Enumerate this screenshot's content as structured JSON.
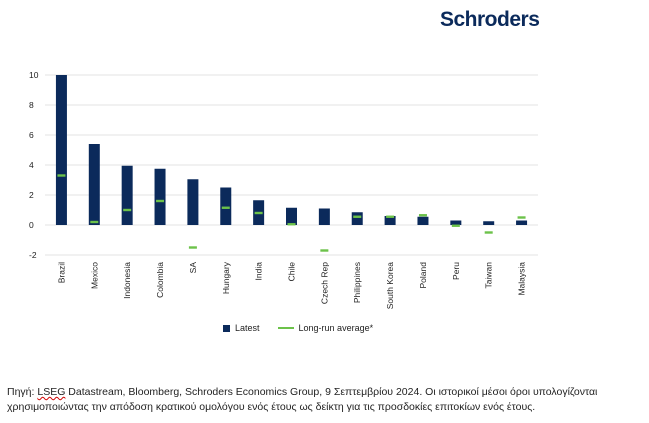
{
  "brand": {
    "logo_text": "Schroders"
  },
  "colors": {
    "latest": "#0b2a5b",
    "average": "#6cc24a",
    "grid": "#e3e3e3"
  },
  "chart_data": {
    "type": "bar",
    "categories": [
      "Brazil",
      "Mexico",
      "Indonesia",
      "Colombia",
      "SA",
      "Hungary",
      "India",
      "Chile",
      "Czech Rep",
      "Philippines",
      "South Korea",
      "Poland",
      "Peru",
      "Taiwan",
      "Malaysia"
    ],
    "series": [
      {
        "name": "Latest",
        "type": "bar",
        "values": [
          10.0,
          5.4,
          3.95,
          3.75,
          3.05,
          2.5,
          1.65,
          1.15,
          1.1,
          0.85,
          0.6,
          0.55,
          0.3,
          0.25,
          0.3
        ]
      },
      {
        "name": "Long-run average*",
        "type": "marker",
        "values": [
          3.3,
          0.2,
          1.0,
          1.6,
          -1.5,
          1.15,
          0.8,
          0.05,
          -1.7,
          0.55,
          0.55,
          0.65,
          -0.05,
          -0.5,
          0.5
        ]
      }
    ],
    "yticks": [
      10,
      8,
      6,
      4,
      2,
      0,
      -2
    ],
    "ylim": [
      -2,
      10
    ],
    "grid": true,
    "legend_position": "bottom"
  },
  "legend": {
    "latest_label": "Latest",
    "average_label": "Long-run average*"
  },
  "source": {
    "prefix": "Πηγή: ",
    "underlined": "LSEG",
    "text": " Datastream, Bloomberg, Schroders Economics Group, 9 Σεπτεμβρίου 2024. Οι ιστορικοί μέσοι όροι υπολογίζονται χρησιμοποιώντας την απόδοση κρατικού ομολόγου ενός έτους ως δείκτη για τις προσδοκίες επιτοκίων ενός έτους."
  }
}
